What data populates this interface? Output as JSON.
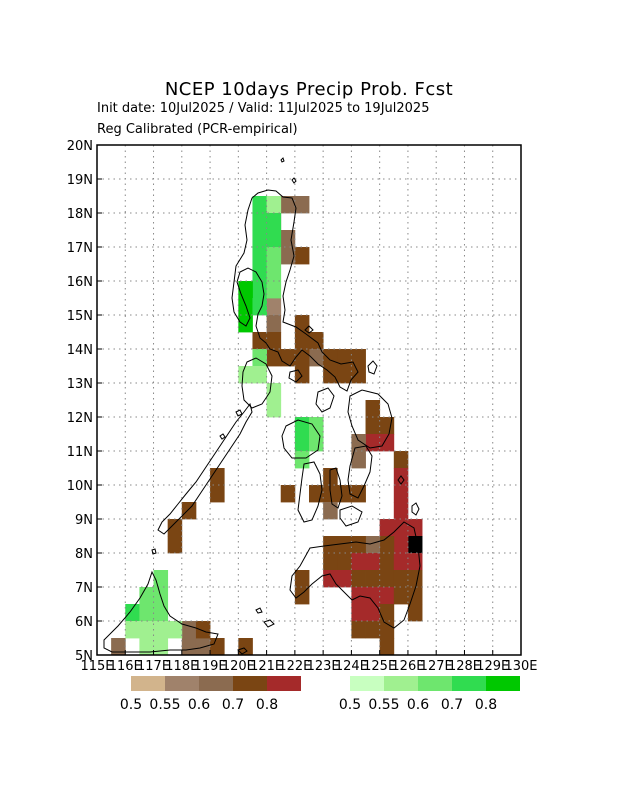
{
  "chart_data": {
    "type": "heatmap",
    "title": "NCEP 10days Precip Prob. Fcst",
    "subtitle_1": "Init date: 10Jul2025 / Valid: 11Jul2025 to 19Jul2025",
    "subtitle_2": "Reg Calibrated (PCR-empirical)",
    "x_range": [
      115,
      130
    ],
    "y_range": [
      5,
      20
    ],
    "x_ticks": [
      "115E",
      "116E",
      "117E",
      "118E",
      "119E",
      "120E",
      "121E",
      "122E",
      "123E",
      "124E",
      "125E",
      "126E",
      "127E",
      "128E",
      "129E",
      "130E"
    ],
    "y_ticks": [
      "5N",
      "6N",
      "7N",
      "8N",
      "9N",
      "10N",
      "11N",
      "12N",
      "13N",
      "14N",
      "15N",
      "16N",
      "17N",
      "18N",
      "19N",
      "20N"
    ],
    "grid": true,
    "cell_size_deg": 0.5,
    "legend_dry": {
      "labels": [
        "0.5",
        "0.55",
        "0.6",
        "0.7",
        "0.8"
      ],
      "colors": [
        "#d2b48c",
        "#a0826b",
        "#8b6b50",
        "#7a4513",
        "#a52a2a"
      ]
    },
    "legend_wet": {
      "labels": [
        "0.5",
        "0.55",
        "0.6",
        "0.7",
        "0.8"
      ],
      "colors": [
        "#c8ffc0",
        "#a0f090",
        "#6ee66e",
        "#30dc50",
        "#00c800"
      ]
    },
    "dry_cells": [
      [
        121.75,
        18.25,
        2
      ],
      [
        122.25,
        18.25,
        2
      ],
      [
        121.25,
        17.75,
        1
      ],
      [
        121.75,
        17.25,
        2
      ],
      [
        122.25,
        16.75,
        3
      ],
      [
        121.75,
        16.75,
        2
      ],
      [
        121.25,
        15.25,
        1
      ],
      [
        121.25,
        14.75,
        2
      ],
      [
        122.25,
        14.75,
        3
      ],
      [
        122.25,
        14.25,
        3
      ],
      [
        121.25,
        14.25,
        3
      ],
      [
        120.75,
        14.25,
        3
      ],
      [
        121.75,
        13.75,
        3
      ],
      [
        122.75,
        14.25,
        3
      ],
      [
        122.75,
        13.75,
        2
      ],
      [
        122.25,
        13.75,
        3
      ],
      [
        121.25,
        13.75,
        3
      ],
      [
        123.25,
        13.75,
        3
      ],
      [
        123.75,
        13.75,
        3
      ],
      [
        124.25,
        13.75,
        3
      ],
      [
        124.25,
        13.25,
        3
      ],
      [
        123.25,
        13.25,
        3
      ],
      [
        123.75,
        13.25,
        3
      ],
      [
        124.75,
        12.25,
        3
      ],
      [
        124.75,
        11.75,
        3
      ],
      [
        125.25,
        11.75,
        3
      ],
      [
        124.75,
        11.25,
        4
      ],
      [
        125.25,
        11.25,
        4
      ],
      [
        124.25,
        11.25,
        2
      ],
      [
        124.25,
        10.75,
        2
      ],
      [
        125.75,
        10.75,
        3
      ],
      [
        125.75,
        10.25,
        4
      ],
      [
        123.25,
        10.25,
        3
      ],
      [
        123.75,
        9.75,
        3
      ],
      [
        123.25,
        9.75,
        3
      ],
      [
        122.75,
        9.75,
        3
      ],
      [
        123.25,
        9.25,
        2
      ],
      [
        124.25,
        9.75,
        3
      ],
      [
        125.75,
        9.75,
        4
      ],
      [
        125.75,
        9.25,
        4
      ],
      [
        125.75,
        8.75,
        4
      ],
      [
        125.25,
        8.75,
        4
      ],
      [
        126.25,
        8.75,
        4
      ],
      [
        126.25,
        8.25,
        5
      ],
      [
        125.75,
        8.25,
        4
      ],
      [
        125.25,
        8.25,
        3
      ],
      [
        124.75,
        8.25,
        2
      ],
      [
        124.25,
        8.25,
        3
      ],
      [
        123.75,
        8.25,
        3
      ],
      [
        123.25,
        8.25,
        3
      ],
      [
        123.25,
        7.75,
        3
      ],
      [
        123.75,
        7.75,
        3
      ],
      [
        124.25,
        7.75,
        4
      ],
      [
        124.75,
        7.75,
        4
      ],
      [
        125.25,
        7.75,
        3
      ],
      [
        125.75,
        7.75,
        4
      ],
      [
        126.25,
        7.75,
        4
      ],
      [
        123.25,
        7.25,
        4
      ],
      [
        123.75,
        7.25,
        4
      ],
      [
        124.25,
        7.25,
        3
      ],
      [
        124.75,
        7.25,
        3
      ],
      [
        125.25,
        7.25,
        3
      ],
      [
        125.75,
        7.25,
        3
      ],
      [
        126.25,
        7.25,
        3
      ],
      [
        124.25,
        6.75,
        4
      ],
      [
        124.75,
        6.75,
        4
      ],
      [
        125.25,
        6.75,
        4
      ],
      [
        125.75,
        6.75,
        3
      ],
      [
        126.25,
        6.75,
        3
      ],
      [
        124.25,
        6.25,
        4
      ],
      [
        124.75,
        6.25,
        4
      ],
      [
        125.25,
        6.25,
        3
      ],
      [
        126.25,
        6.25,
        3
      ],
      [
        124.25,
        5.75,
        3
      ],
      [
        124.75,
        5.75,
        3
      ],
      [
        125.25,
        5.75,
        3
      ],
      [
        125.25,
        5.25,
        3
      ],
      [
        122.25,
        7.25,
        3
      ],
      [
        122.25,
        6.75,
        3
      ],
      [
        122.25,
        13.25,
        3
      ],
      [
        121.75,
        9.75,
        3
      ],
      [
        119.25,
        10.25,
        3
      ],
      [
        119.25,
        9.75,
        3
      ],
      [
        118.25,
        9.25,
        3
      ],
      [
        117.75,
        8.75,
        3
      ],
      [
        117.75,
        8.25,
        3
      ],
      [
        118.25,
        5.75,
        2
      ],
      [
        118.25,
        5.25,
        2
      ],
      [
        118.75,
        5.25,
        2
      ],
      [
        118.75,
        5.75,
        3
      ],
      [
        119.25,
        5.25,
        3
      ],
      [
        115.75,
        5.25,
        2
      ],
      [
        120.25,
        5.25,
        3
      ]
    ],
    "wet_cells": [
      [
        120.75,
        18.25,
        3
      ],
      [
        121.25,
        18.25,
        1
      ],
      [
        120.75,
        17.75,
        3
      ],
      [
        121.25,
        17.75,
        3
      ],
      [
        120.75,
        17.25,
        3
      ],
      [
        121.25,
        17.25,
        3
      ],
      [
        120.75,
        16.75,
        3
      ],
      [
        121.25,
        16.75,
        2
      ],
      [
        120.75,
        16.25,
        3
      ],
      [
        121.25,
        16.25,
        2
      ],
      [
        120.75,
        15.75,
        3
      ],
      [
        121.25,
        15.75,
        2
      ],
      [
        120.25,
        15.75,
        4
      ],
      [
        120.25,
        15.25,
        4
      ],
      [
        120.75,
        15.25,
        3
      ],
      [
        120.25,
        14.75,
        4
      ],
      [
        120.75,
        13.75,
        2
      ],
      [
        120.25,
        13.25,
        1
      ],
      [
        120.75,
        13.25,
        1
      ],
      [
        121.25,
        12.75,
        1
      ],
      [
        121.25,
        12.25,
        1
      ],
      [
        122.25,
        11.75,
        3
      ],
      [
        122.75,
        11.75,
        2
      ],
      [
        122.25,
        11.25,
        3
      ],
      [
        122.75,
        11.25,
        2
      ],
      [
        122.25,
        10.75,
        2
      ],
      [
        117.25,
        7.25,
        2
      ],
      [
        116.75,
        6.75,
        2
      ],
      [
        117.25,
        6.75,
        2
      ],
      [
        116.25,
        6.25,
        3
      ],
      [
        116.75,
        6.25,
        2
      ],
      [
        117.25,
        6.25,
        2
      ],
      [
        116.25,
        5.75,
        1
      ],
      [
        116.75,
        5.75,
        1
      ],
      [
        117.25,
        5.75,
        1
      ],
      [
        117.75,
        5.75,
        1
      ],
      [
        116.75,
        5.25,
        1
      ],
      [
        117.25,
        5.25,
        1
      ]
    ]
  }
}
